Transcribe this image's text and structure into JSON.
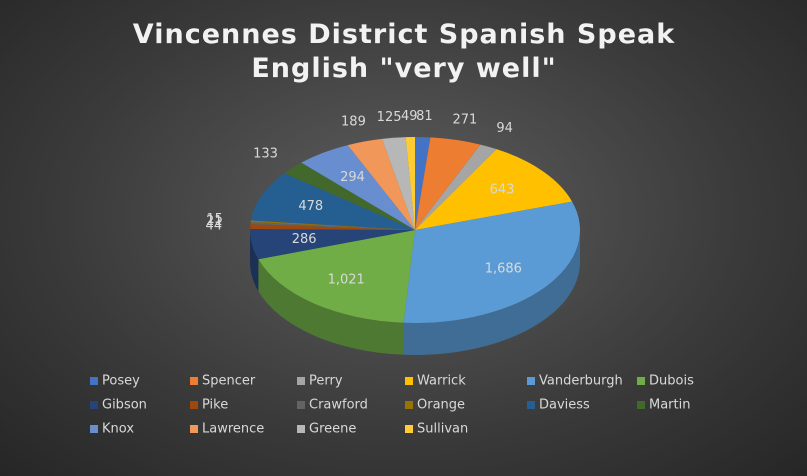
{
  "chart_data": {
    "type": "pie3d",
    "title": "Vincennes District Spanish Speak English \"very well\"",
    "categories": [
      "Posey",
      "Spencer",
      "Perry",
      "Warrick",
      "Vanderburgh",
      "Dubois",
      "Gibson",
      "Pike",
      "Crawford",
      "Orange",
      "Daviess",
      "Martin",
      "Knox",
      "Lawrence",
      "Greene",
      "Sullivan"
    ],
    "values": [
      81,
      271,
      94,
      643,
      1686,
      1021,
      286,
      44,
      21,
      15,
      478,
      133,
      294,
      189,
      125,
      49
    ],
    "value_labels": [
      "81",
      "271",
      "94",
      "643",
      "1,686",
      "1,021",
      "286",
      "44",
      "21",
      "15",
      "478",
      "133",
      "294",
      "189",
      "125",
      "49"
    ],
    "colors": [
      "#4472c4",
      "#ed7d31",
      "#a5a5a5",
      "#ffc000",
      "#5b9bd5",
      "#70ad47",
      "#264478",
      "#9e480e",
      "#636363",
      "#997300",
      "#255e91",
      "#43682b",
      "#698ed0",
      "#f1975a",
      "#b7b7b7",
      "#ffcd33"
    ],
    "legend": "bottom"
  }
}
